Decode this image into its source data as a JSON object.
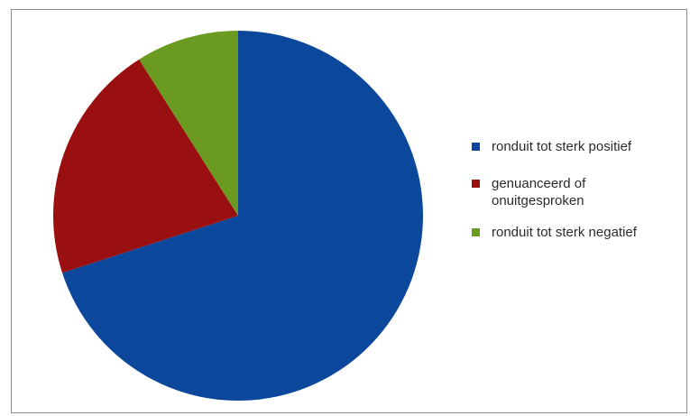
{
  "chart_data": {
    "type": "pie",
    "title": "",
    "slices": [
      {
        "label": "ronduit tot sterk positief",
        "value": 70,
        "color": "#0b479a"
      },
      {
        "label": "genuanceerd of onuitgesproken",
        "value": 21,
        "color": "#9a1010"
      },
      {
        "label": "ronduit tot sterk negatief",
        "value": 9,
        "color": "#6a9a1f"
      }
    ],
    "start": "12 o'clock",
    "direction": "clockwise",
    "legend_position": "right"
  },
  "legend": {
    "items": [
      {
        "line1": "ronduit tot sterk positief",
        "line2": "",
        "color": "#0b479a"
      },
      {
        "line1": "genuanceerd of",
        "line2": "onuitgesproken",
        "color": "#9a1010"
      },
      {
        "line1": "ronduit tot sterk negatief",
        "line2": "",
        "color": "#6a9a1f"
      }
    ]
  }
}
